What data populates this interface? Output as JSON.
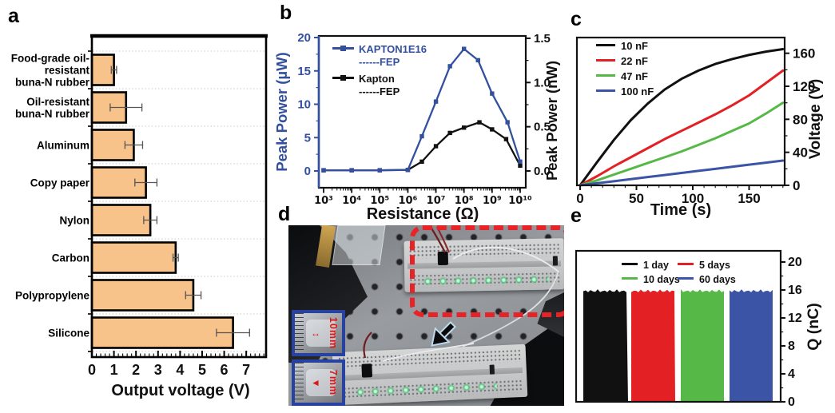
{
  "figure_type": "multi-panel scientific figure",
  "panel_labels": {
    "a": "a",
    "b": "b",
    "c": "c",
    "d": "d",
    "e": "e"
  },
  "colors": {
    "bar_fill": "#F8C38A",
    "series_blue": "#33509F",
    "red": "#E32024",
    "green": "#56B947",
    "line_blue": "#3B54A5",
    "black": "#111111",
    "dashed_box_red": "#E62428",
    "inset_border_blue": "#2742A0",
    "annotation_red": "#E01515"
  },
  "chart_data": [
    {
      "id": "a",
      "type": "bar",
      "orientation": "horizontal",
      "xlabel": "Output voltage (V)",
      "categories": [
        "Food-grade oil-\nresistant\nbuna-N rubber",
        "Oil-resistant\nbuna-N rubber",
        "Aluminum",
        "Copy paper",
        "Nylon",
        "Carbon",
        "Polypropylene",
        "Silicone"
      ],
      "values": [
        1.0,
        1.55,
        1.9,
        2.45,
        2.65,
        3.8,
        4.6,
        6.4
      ],
      "errors": [
        0.12,
        0.72,
        0.4,
        0.5,
        0.3,
        0.12,
        0.35,
        0.75
      ],
      "xlim": [
        0,
        7.9
      ],
      "xticks": [
        0,
        1,
        2,
        3,
        4,
        5,
        6,
        7
      ],
      "grid": "dotted-horizontal"
    },
    {
      "id": "b",
      "type": "line",
      "x_scale": "log",
      "xlabel": "Resistance (Ω)",
      "ylabel_left": "Peak Power (µW)",
      "ylabel_right": "Peak Power (nW)",
      "xtick_labels": [
        "10³",
        "10⁴",
        "10⁵",
        "10⁶",
        "10⁷",
        "10⁸",
        "10⁹",
        "10¹⁰"
      ],
      "yticks_left": [
        0,
        5,
        10,
        15,
        20
      ],
      "yticks_right": [
        "0.0",
        "0.5",
        "1.0",
        "1.5"
      ],
      "ylim_left": [
        -2.5,
        20
      ],
      "series": [
        {
          "name": "KAPTON1E16",
          "sub": "------FEP",
          "axis": "left",
          "color": "#33509F",
          "marker": "square",
          "x_log10": [
            3,
            4,
            5,
            6,
            6.5,
            7,
            7.5,
            8,
            8.5,
            9,
            9.55,
            10
          ],
          "y": [
            0.1,
            0.1,
            0.1,
            0.15,
            5.2,
            10.4,
            15.7,
            18.3,
            16.6,
            11.6,
            7.3,
            1.4
          ]
        },
        {
          "name": "Kapton",
          "sub": "------FEP",
          "axis": "right",
          "color": "#111111",
          "marker": "square",
          "x_log10": [
            3,
            4,
            5,
            6,
            6.5,
            7,
            7.5,
            8,
            8.55,
            9,
            9.5,
            10
          ],
          "y": [
            0.008,
            0.008,
            0.008,
            0.012,
            0.105,
            0.28,
            0.43,
            0.49,
            0.55,
            0.47,
            0.36,
            0.06
          ]
        }
      ]
    },
    {
      "id": "c",
      "type": "line",
      "xlabel": "Time (s)",
      "ylabel_right": "Voltage (V)",
      "xticks": [
        0,
        50,
        100,
        150
      ],
      "yticks_right": [
        0,
        40,
        80,
        120,
        160
      ],
      "xlim": [
        0,
        181
      ],
      "ylim": [
        0,
        179
      ],
      "x": [
        0,
        15,
        30,
        45,
        60,
        75,
        90,
        105,
        120,
        135,
        150,
        165,
        180
      ],
      "series": [
        {
          "name": "10 nF",
          "color": "#111111",
          "y": [
            0,
            28,
            55,
            79,
            99,
            116,
            129,
            139,
            147,
            153,
            158,
            162,
            165
          ]
        },
        {
          "name": "22 nF",
          "color": "#E32024",
          "y": [
            0,
            11,
            23,
            34,
            45,
            56,
            66,
            76,
            86,
            97,
            109,
            124,
            139
          ]
        },
        {
          "name": "47 nF",
          "color": "#56B947",
          "y": [
            0,
            6,
            13,
            20,
            27,
            34,
            41,
            49,
            57,
            66,
            75,
            87,
            100
          ]
        },
        {
          "name": "100 nF",
          "color": "#3B54A5",
          "y": [
            0,
            2.5,
            5,
            7.5,
            10,
            12.5,
            15,
            17.5,
            20,
            22.5,
            25,
            27.5,
            30
          ]
        }
      ]
    },
    {
      "id": "e",
      "type": "trace-bars",
      "ylabel_right": "Q (nC)",
      "yticks_right": [
        0,
        4,
        8,
        12,
        16,
        20
      ],
      "ylim": [
        0,
        21.6
      ],
      "series": [
        {
          "name": "1 day",
          "color": "#111111",
          "value": 16
        },
        {
          "name": "5 days",
          "color": "#E32024",
          "value": 16
        },
        {
          "name": "10 days",
          "color": "#56B947",
          "value": 16
        },
        {
          "name": "60 days",
          "color": "#3B54A5",
          "value": 16
        }
      ]
    }
  ],
  "panel_d": {
    "annotations": [
      "10mm",
      "7mm"
    ]
  }
}
